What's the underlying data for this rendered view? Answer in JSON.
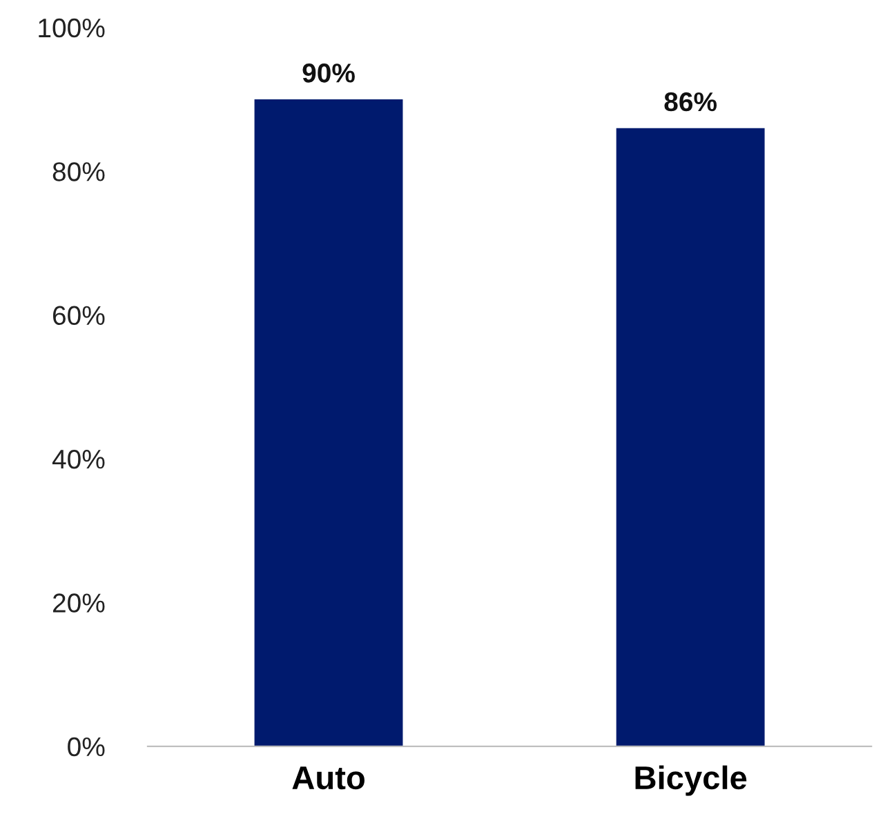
{
  "chart_data": {
    "type": "bar",
    "categories": [
      "Auto",
      "Bicycle"
    ],
    "values": [
      90,
      86
    ],
    "value_labels": [
      "90%",
      "86%"
    ],
    "color": "#001a6e",
    "ylim": [
      0,
      100
    ],
    "yticks": [
      {
        "value": 0,
        "label": "0%"
      },
      {
        "value": 20,
        "label": "20%"
      },
      {
        "value": 40,
        "label": "40%"
      },
      {
        "value": 60,
        "label": "60%"
      },
      {
        "value": 80,
        "label": "80%"
      },
      {
        "value": 100,
        "label": "100%"
      }
    ],
    "grid": false,
    "legend": false
  }
}
